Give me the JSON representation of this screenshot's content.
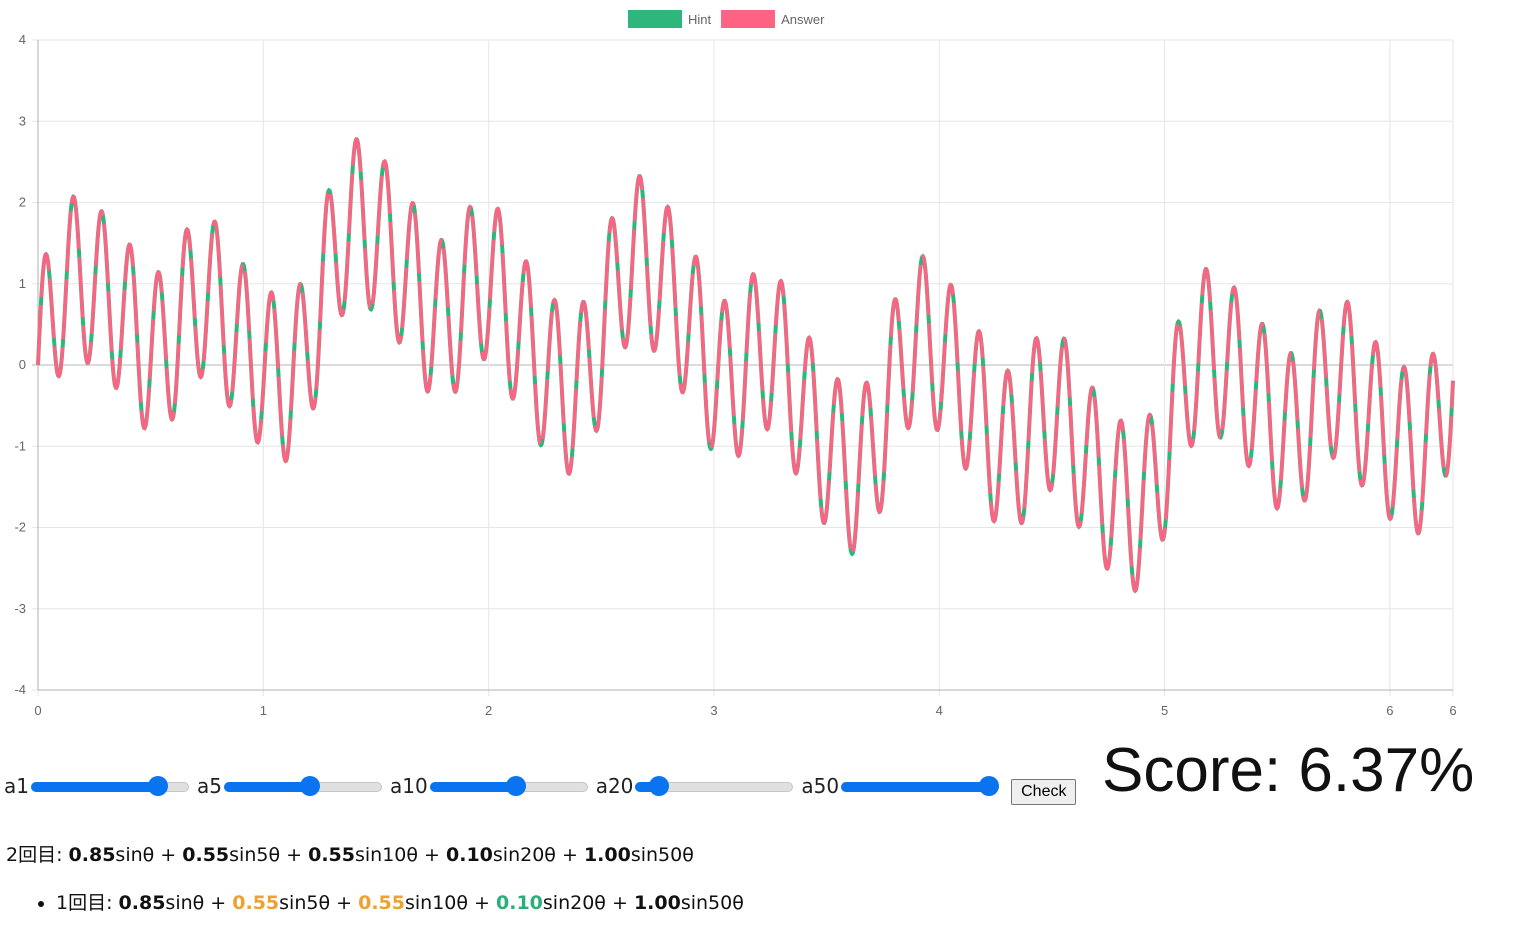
{
  "chart_data": {
    "type": "line",
    "formula_terms": [
      1,
      5,
      10,
      20,
      50
    ],
    "hint_coefficients": [
      0.85,
      0.55,
      0.55,
      0.1,
      1.0
    ],
    "answer_coefficients": [
      0.85,
      0.55,
      0.55,
      0.1,
      1.0
    ],
    "x_range": [
      0,
      6.28
    ],
    "ylim": [
      -4,
      4
    ],
    "x_ticks": [
      "0",
      "1",
      "2",
      "3",
      "4",
      "5",
      "6",
      "6"
    ],
    "y_ticks": [
      "4",
      "3",
      "2",
      "1",
      "0",
      "-1",
      "-2",
      "-3",
      "-4"
    ],
    "legend_position": "top",
    "grid": true,
    "series": [
      {
        "name": "Hint",
        "color": "#2eb67d"
      },
      {
        "name": "Answer",
        "color": "#ff6384"
      }
    ]
  },
  "legend": {
    "items": [
      {
        "label": "Hint",
        "color": "#2eb67d"
      },
      {
        "label": "Answer",
        "color": "#ff6384"
      }
    ]
  },
  "controls": {
    "sliders": [
      {
        "label": "a1",
        "value": 0.85
      },
      {
        "label": "a5",
        "value": 0.55
      },
      {
        "label": "a10",
        "value": 0.55
      },
      {
        "label": "a20",
        "value": 0.1
      },
      {
        "label": "a50",
        "value": 1.0
      }
    ],
    "check_label": "Check"
  },
  "score": {
    "text": "Score: 6.37%"
  },
  "current_round": {
    "prefix": "2回目: ",
    "terms": [
      {
        "coef": "0.85",
        "func": "sinθ",
        "sep": " + ",
        "status": "normal"
      },
      {
        "coef": "0.55",
        "func": "sin5θ",
        "sep": " + ",
        "status": "normal"
      },
      {
        "coef": "0.55",
        "func": "sin10θ",
        "sep": " + ",
        "status": "normal"
      },
      {
        "coef": "0.10",
        "func": "sin20θ",
        "sep": " + ",
        "status": "normal"
      },
      {
        "coef": "1.00",
        "func": "sin50θ",
        "sep": "",
        "status": "normal"
      }
    ]
  },
  "history": [
    {
      "prefix": "1回目: ",
      "terms": [
        {
          "coef": "0.85",
          "func": "sinθ",
          "sep": " + ",
          "status": "normal"
        },
        {
          "coef": "0.55",
          "func": "sin5θ",
          "sep": " + ",
          "status": "orange"
        },
        {
          "coef": "0.55",
          "func": "sin10θ",
          "sep": " + ",
          "status": "orange"
        },
        {
          "coef": "0.10",
          "func": "sin20θ",
          "sep": " + ",
          "status": "green"
        },
        {
          "coef": "1.00",
          "func": "sin50θ",
          "sep": "",
          "status": "normal"
        }
      ]
    }
  ]
}
